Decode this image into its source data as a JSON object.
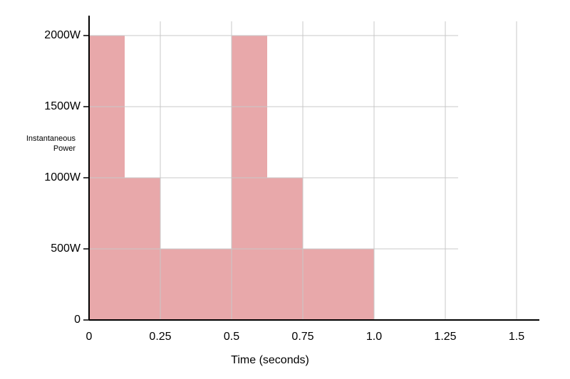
{
  "chart_data": {
    "type": "histogram",
    "x_label": "Time (seconds)",
    "y_label": "Instantaneous Power",
    "bins": [
      0,
      0.125,
      0.25,
      0.5,
      0.625,
      0.75,
      1.0
    ],
    "values": [
      2000,
      1000,
      500,
      2000,
      1000,
      500
    ],
    "color": "#e8a8aa",
    "xlim": [
      0,
      1.58
    ],
    "ylim": [
      0,
      2140
    ],
    "xticks": [
      0,
      0.25,
      0.5,
      0.75,
      {
        "value": 1,
        "label": "1.0"
      },
      1.25,
      1.5
    ],
    "yticks": [
      0,
      {
        "value": 500,
        "label": "500W"
      },
      {
        "value": 1000,
        "label": "1000W"
      },
      {
        "value": 1500,
        "label": "1500W"
      },
      {
        "value": 2000,
        "label": "2000W"
      }
    ],
    "grid": true
  }
}
